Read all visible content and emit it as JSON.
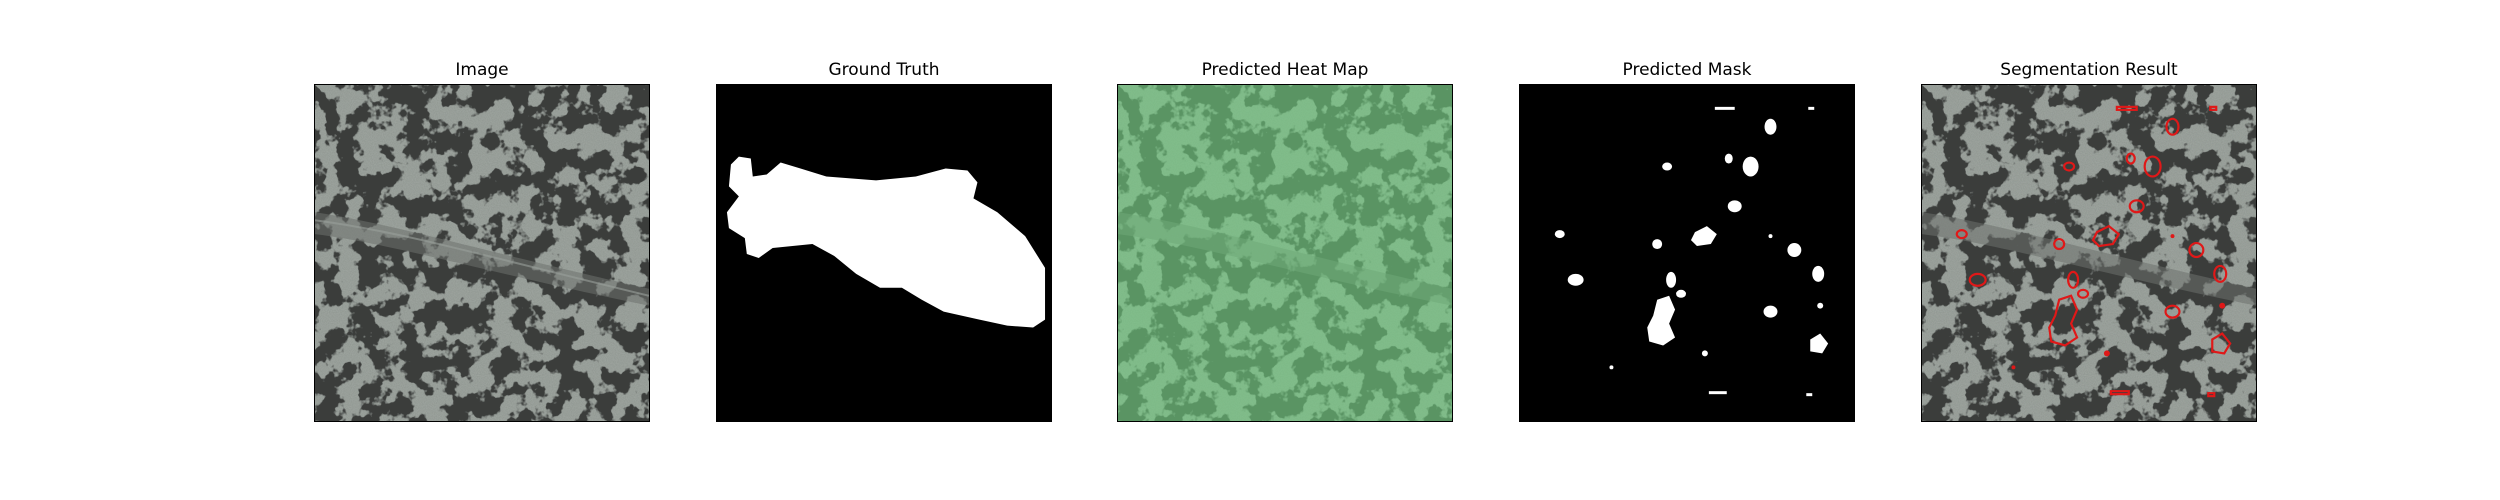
{
  "panels": [
    {
      "id": "image",
      "title": "Image"
    },
    {
      "id": "ground-truth",
      "title": "Ground Truth"
    },
    {
      "id": "predicted-heat-map",
      "title": "Predicted Heat Map"
    },
    {
      "id": "predicted-mask",
      "title": "Predicted Mask"
    },
    {
      "id": "segmentation-result",
      "title": "Segmentation Result"
    }
  ],
  "colors": {
    "terrain_base": "#8e958f",
    "terrain_dark": "#3a3d3b",
    "heat_overlay": "#6fcf7f",
    "mask_fg": "#ffffff",
    "mask_bg": "#000000",
    "contour": "#e01818"
  }
}
